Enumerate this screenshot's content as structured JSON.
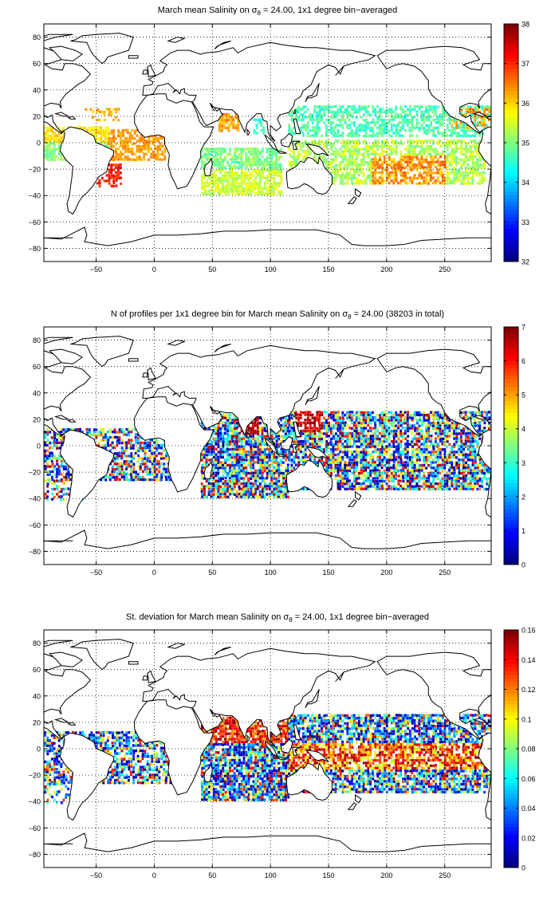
{
  "panels": [
    {
      "title_pre": "March mean Salinity on σ",
      "title_sub": "θ",
      "title_post": " = 24.00, 1x1 degree bin−averaged",
      "colorbar": {
        "min": 32,
        "max": 38,
        "ticks": [
          "32",
          "33",
          "34",
          "35",
          "36",
          "37",
          "38"
        ]
      },
      "map_lat_ticks": [
        "80",
        "60",
        "40",
        "20",
        "0",
        "−20",
        "−40",
        "−60",
        "−80"
      ],
      "map_lon_ticks": [
        "−50",
        "0",
        "50",
        "100",
        "150",
        "200",
        "250"
      ]
    },
    {
      "title_pre": "N of profiles per 1x1 degree bin for March mean Salinity on σ",
      "title_sub": "θ",
      "title_post": " = 24.00 (38203 in total)",
      "colorbar": {
        "min": 0,
        "max": 7,
        "ticks": [
          "0",
          "1",
          "2",
          "3",
          "4",
          "5",
          "6",
          "7"
        ]
      },
      "map_lat_ticks": [
        "80",
        "60",
        "40",
        "20",
        "0",
        "−20",
        "−40",
        "−60",
        "−80"
      ],
      "map_lon_ticks": [
        "−50",
        "0",
        "50",
        "100",
        "150",
        "200",
        "250"
      ]
    },
    {
      "title_pre": "St. deviation for March mean Salinity on σ",
      "title_sub": "θ",
      "title_post": " = 24.00, 1x1 degree bin−averaged",
      "colorbar": {
        "min": 0,
        "max": 0.16,
        "ticks": [
          "0",
          "0.02",
          "0.04",
          "0.06",
          "0.08",
          "0.1",
          "0.12",
          "0.14",
          "0.16"
        ]
      },
      "map_lat_ticks": [
        "80",
        "60",
        "40",
        "20",
        "0",
        "−20",
        "−40",
        "−60",
        "−80"
      ],
      "map_lon_ticks": [
        "−50",
        "0",
        "50",
        "100",
        "150",
        "200",
        "250"
      ]
    }
  ],
  "map": {
    "lon_range": [
      -95,
      290
    ],
    "lat_range": [
      -90,
      90
    ],
    "grid": "dotted",
    "colormap": "jet"
  }
}
